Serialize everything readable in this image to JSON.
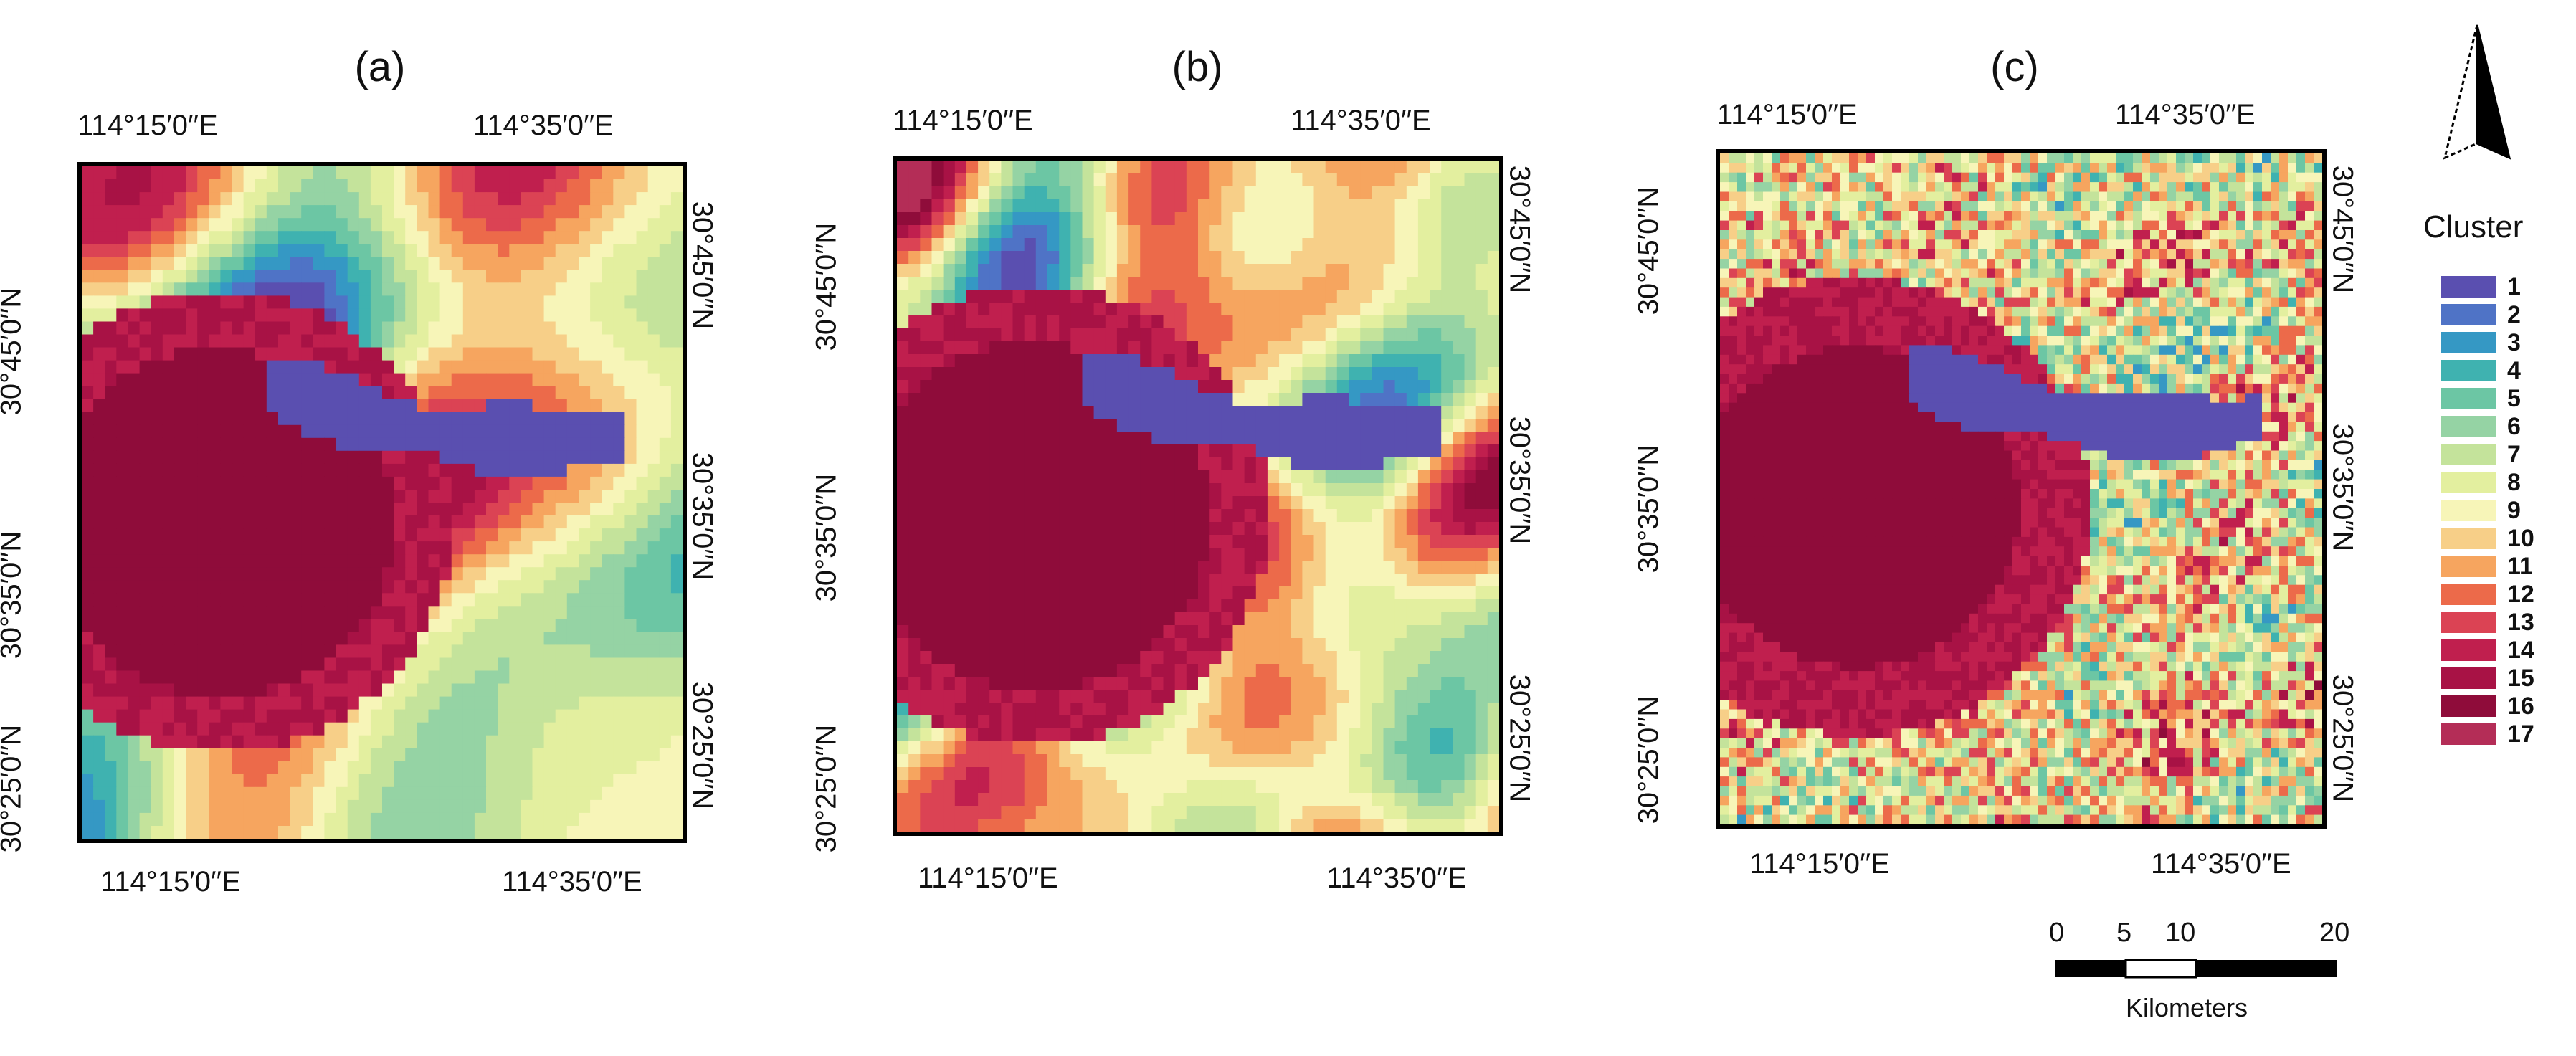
{
  "panels": [
    {
      "label": "(a)",
      "lon_top": [
        "114°15′0′′E",
        "114°35′0′′E"
      ],
      "lon_bottom": [
        "114°15′0′′E",
        "114°35′0′′E"
      ],
      "lat_left": [
        "30°45′0′′N",
        "30°35′0′′N",
        "30°25′0′′N"
      ],
      "lat_right": [
        "30°45′0′′N",
        "30°35′0′′N",
        "30°25′0′′N"
      ]
    },
    {
      "label": "(b)",
      "lon_top": [
        "114°15′0′′E",
        "114°35′0′′E"
      ],
      "lon_bottom": [
        "114°15′0′′E",
        "114°35′0′′E"
      ],
      "lat_left": [
        "30°45′0′′N",
        "30°35′0′′N",
        "30°25′0′′N"
      ],
      "lat_right": [
        "30°45′0′′N",
        "30°35′0′′N",
        "30°25′0′′N"
      ]
    },
    {
      "label": "(c)",
      "lon_top": [
        "114°15′0′′E",
        "114°35′0′′E"
      ],
      "lon_bottom": [
        "114°15′0′′E",
        "114°35′0′′E"
      ],
      "lat_left": [
        "30°45′0′′N",
        "30°35′0′′N",
        "30°25′0′′N"
      ],
      "lat_right": [
        "30°45′0′′N",
        "30°35′0′′N",
        "30°25′0′′N"
      ]
    }
  ],
  "legend": {
    "title": "Cluster",
    "items": [
      {
        "label": "1",
        "color": "#5a4fb0"
      },
      {
        "label": "2",
        "color": "#4f73c6"
      },
      {
        "label": "3",
        "color": "#3598c4"
      },
      {
        "label": "4",
        "color": "#3fb2b0"
      },
      {
        "label": "5",
        "color": "#6cc6a4"
      },
      {
        "label": "6",
        "color": "#95d3a4"
      },
      {
        "label": "7",
        "color": "#c4e39b"
      },
      {
        "label": "8",
        "color": "#e3ef9f"
      },
      {
        "label": "9",
        "color": "#f7f5b8"
      },
      {
        "label": "10",
        "color": "#f7cf88"
      },
      {
        "label": "11",
        "color": "#f6a55f"
      },
      {
        "label": "12",
        "color": "#ec6a4a"
      },
      {
        "label": "13",
        "color": "#db4354"
      },
      {
        "label": "14",
        "color": "#c01f4e"
      },
      {
        "label": "15",
        "color": "#a81245"
      },
      {
        "label": "16",
        "color": "#8f0c3a"
      },
      {
        "label": "17",
        "color": "#b42d57"
      }
    ]
  },
  "scalebar": {
    "ticks": [
      "0",
      "5",
      "10",
      "20"
    ],
    "unit": "Kilometers"
  },
  "north_arrow": "north-arrow"
}
